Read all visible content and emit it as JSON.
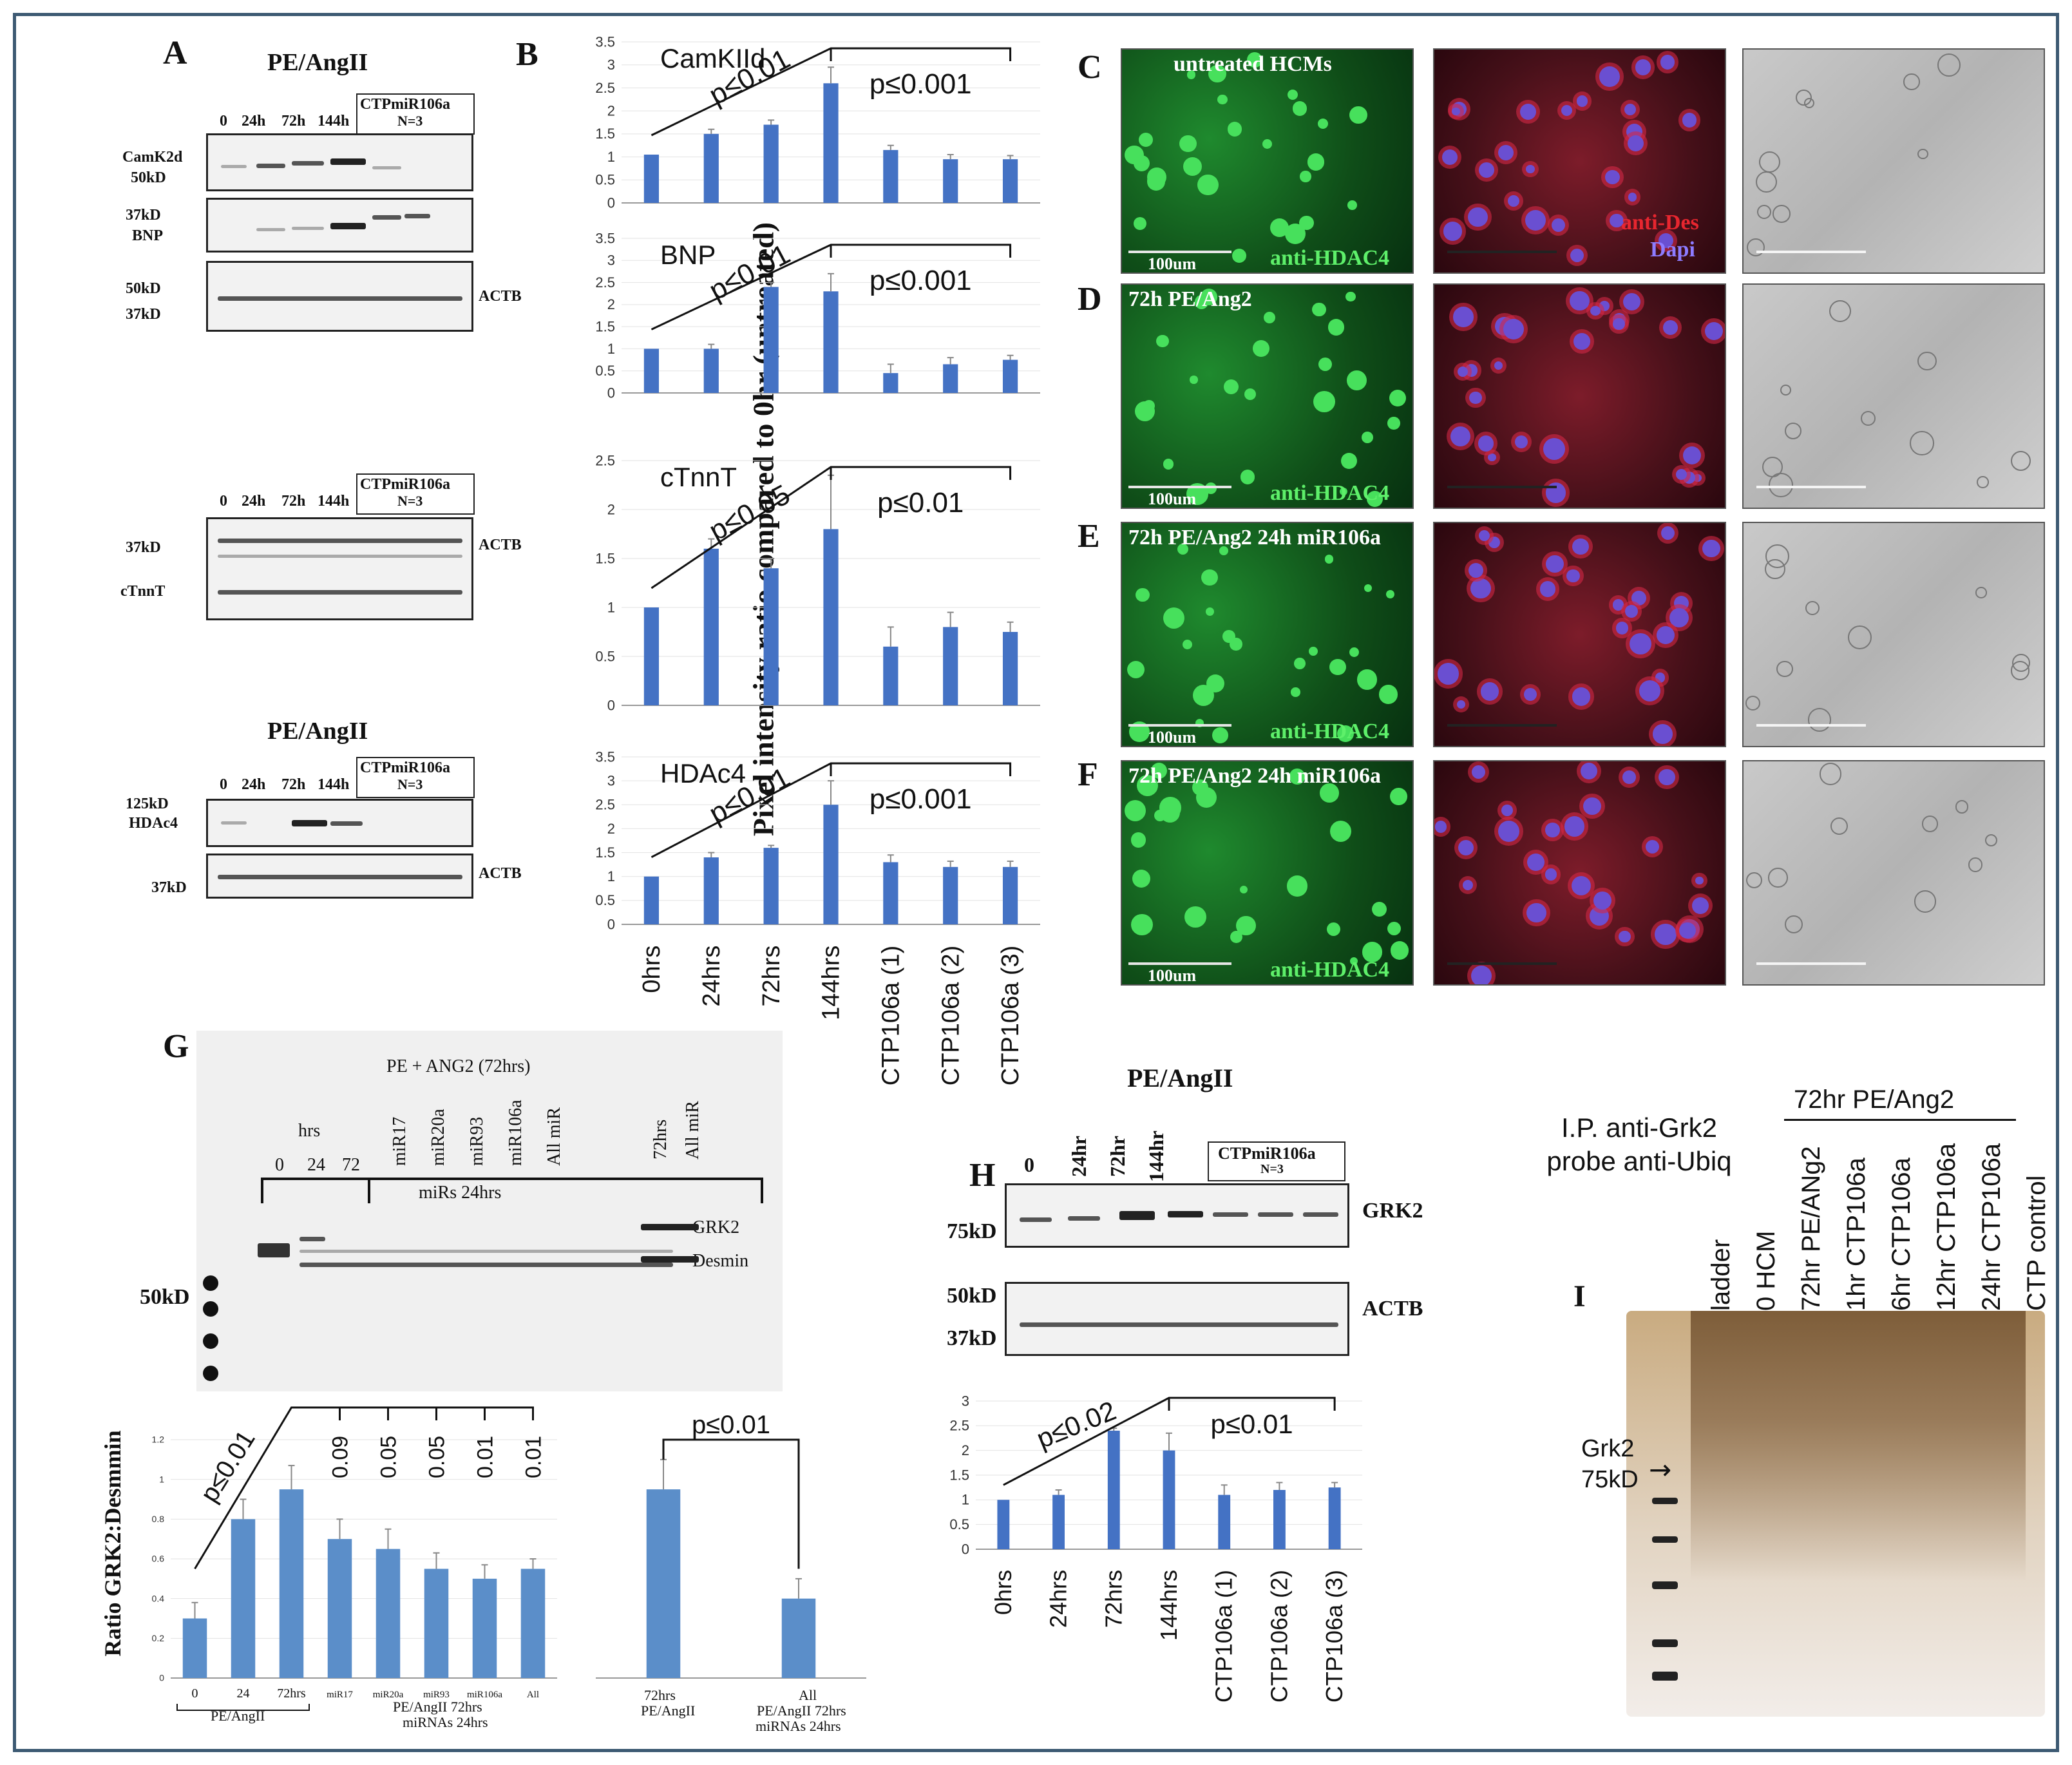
{
  "panels": {
    "A": {
      "letter": "A",
      "blot1": {
        "title": "PE/AngII",
        "lanes": [
          "0",
          "24h",
          "72h",
          "144h"
        ],
        "ctp_label": "CTPmiR106a",
        "ctp_n": "N=3",
        "left_labels": [
          "CamK2d",
          "50kD",
          "37kD",
          "BNP",
          "50kD",
          "37kD"
        ],
        "right_labels": [
          "ACTB"
        ]
      },
      "blot2": {
        "lanes": [
          "0",
          "24h",
          "72h",
          "144h"
        ],
        "ctp_label": "CTPmiR106a",
        "ctp_n": "N=3",
        "left_labels": [
          "37kD",
          "cTnnT"
        ],
        "right_labels": [
          "ACTB"
        ]
      },
      "blot3": {
        "title": "PE/AngII",
        "lanes": [
          "0",
          "24h",
          "72h",
          "144h"
        ],
        "ctp_label": "CTPmiR106a",
        "ctp_n": "N=3",
        "left_labels": [
          "125kD",
          "HDAc4",
          "37kD"
        ],
        "right_labels": [
          "ACTB"
        ]
      }
    },
    "B": {
      "letter": "B",
      "ylabel": "Pixel intensity ratio compared to 0hr (untreated)",
      "categories": [
        "0hrs",
        "24hrs",
        "72hrs",
        "144hrs",
        "CTP106a (1)",
        "CTP106a (2)",
        "CTP106a (3)"
      ]
    },
    "C": {
      "letter": "C",
      "title": "untreated HCMs",
      "stain": "anti-HDAC4",
      "scale": "100um",
      "red_stain": "anti-Des",
      "dapi": "Dapi"
    },
    "D": {
      "letter": "D",
      "title": "72h PE/Ang2",
      "stain": "anti-HDAC4",
      "scale": "100um"
    },
    "E": {
      "letter": "E",
      "title": "72h PE/Ang2 24h miR106a",
      "stain": "anti-HDAC4",
      "scale": "100um"
    },
    "F": {
      "letter": "F",
      "title": "72h PE/Ang2 24h miR106a",
      "stain": "anti-HDAC4",
      "scale": "100um"
    },
    "G": {
      "letter": "G",
      "blot_title": "PE + ANG2 (72hrs)",
      "hrs_label": "hrs",
      "time_lanes": [
        "0",
        "24",
        "72"
      ],
      "mir_lanes": [
        "miR17",
        "miR20a",
        "miR93",
        "miR106a",
        "All miR"
      ],
      "mir_group": "miRs 24hrs",
      "right_lanes": [
        "72hrs",
        "All miR"
      ],
      "markers": [
        "GRK2",
        "Desmin"
      ],
      "ladder": "50kD",
      "ylabel": "Ratio GRK2:Desmmin",
      "left_group_label": "PE/AngII",
      "middle_group_label_1": "PE/AngII 72hrs",
      "middle_group_label_2": "miRNAs 24hrs",
      "right_cat_1a": "72hrs",
      "right_cat_1b": "PE/AngII",
      "right_cat_2a": "All",
      "right_cat_2b": "PE/AngII 72hrs",
      "right_cat_2c": "miRNAs 24hrs"
    },
    "H": {
      "letter": "H",
      "title": "PE/AngII",
      "lanes": [
        "0",
        "24hr",
        "72hr",
        "144hr"
      ],
      "ctp_label": "CTPmiR106a",
      "ctp_n": "N=3",
      "grk2_label": "GRK2",
      "actb_label": "ACTB",
      "markers": [
        "75kD",
        "50kD",
        "37kD"
      ]
    },
    "I": {
      "letter": "I",
      "title_line1": "I.P. anti-Grk2",
      "title_line2": "probe anti-Ubiq",
      "group_label": "72hr PE/Ang2",
      "lanes": [
        "ladder",
        "0 HCM",
        "72hr PE/ANg2",
        "1hr CTP106a",
        "6hr CTP106a",
        "12hr CTP106a",
        "24hr CTP106a",
        "CTP control"
      ],
      "marker_1": "Grk2",
      "marker_2": "75kD"
    }
  },
  "chart_data": [
    {
      "type": "bar",
      "panel": "B",
      "title": "CamKIId",
      "categories": [
        "0hrs",
        "24hrs",
        "72hrs",
        "144hrs",
        "CTP106a (1)",
        "CTP106a (2)",
        "CTP106a (3)"
      ],
      "values": [
        1.05,
        1.5,
        1.7,
        2.6,
        1.15,
        0.95,
        0.95
      ],
      "errors": [
        0.0,
        0.1,
        0.1,
        0.35,
        0.1,
        0.1,
        0.08
      ],
      "ylim": [
        0,
        3.5
      ],
      "yticks": [
        "0",
        "0.5",
        "1",
        "1.5",
        "2",
        "2.5",
        "3",
        "3.5"
      ],
      "annotations": [
        "p≤0.01",
        "p≤0.001"
      ],
      "color": "#4472c4"
    },
    {
      "type": "bar",
      "panel": "B",
      "title": "BNP",
      "categories": [
        "0hrs",
        "24hrs",
        "72hrs",
        "144hrs",
        "CTP106a (1)",
        "CTP106a (2)",
        "CTP106a (3)"
      ],
      "values": [
        1.0,
        1.0,
        2.4,
        2.3,
        0.45,
        0.65,
        0.75
      ],
      "errors": [
        0.0,
        0.1,
        0.1,
        0.4,
        0.2,
        0.15,
        0.1
      ],
      "ylim": [
        0,
        3.5
      ],
      "yticks": [
        "0",
        "0.5",
        "1",
        "1.5",
        "2",
        "2.5",
        "3",
        "3.5"
      ],
      "annotations": [
        "p≤0.01",
        "p≤0.001"
      ],
      "color": "#4472c4"
    },
    {
      "type": "bar",
      "panel": "B",
      "title": "cTnnT",
      "categories": [
        "0hrs",
        "24hrs",
        "72hrs",
        "144hrs",
        "CTP106a (1)",
        "CTP106a (2)",
        "CTP106a (3)"
      ],
      "values": [
        1.0,
        1.6,
        1.4,
        1.8,
        0.6,
        0.8,
        0.75
      ],
      "errors": [
        0.0,
        0.1,
        0.1,
        0.55,
        0.2,
        0.15,
        0.1
      ],
      "ylim": [
        0,
        2.5
      ],
      "yticks": [
        "0",
        "0.5",
        "1",
        "1.5",
        "2",
        "2.5"
      ],
      "annotations": [
        "p≤0.05",
        "p≤0.01"
      ],
      "color": "#4472c4"
    },
    {
      "type": "bar",
      "panel": "B",
      "title": "HDAc4",
      "categories": [
        "0hrs",
        "24hrs",
        "72hrs",
        "144hrs",
        "CTP106a (1)",
        "CTP106a (2)",
        "CTP106a (3)"
      ],
      "values": [
        1.0,
        1.4,
        1.6,
        2.5,
        1.3,
        1.2,
        1.2
      ],
      "errors": [
        0.0,
        0.1,
        0.05,
        0.5,
        0.15,
        0.12,
        0.12
      ],
      "ylim": [
        0,
        3.5
      ],
      "yticks": [
        "0",
        "0.5",
        "1",
        "1.5",
        "2",
        "2.5",
        "3",
        "3.5"
      ],
      "annotations": [
        "p≤0.01",
        "p≤0.001"
      ],
      "color": "#4472c4"
    },
    {
      "type": "bar",
      "panel": "G-left",
      "title": "",
      "ylabel": "Ratio GRK2:Desmmin",
      "categories": [
        "0",
        "24",
        "72hrs",
        "miR17",
        "miR20a",
        "miR93",
        "miR106a",
        "All"
      ],
      "values": [
        0.3,
        0.8,
        0.95,
        0.7,
        0.65,
        0.55,
        0.5,
        0.55
      ],
      "errors": [
        0.08,
        0.1,
        0.12,
        0.1,
        0.1,
        0.08,
        0.07,
        0.05
      ],
      "ylim": [
        0,
        1.2
      ],
      "yticks": [
        "0",
        "0.2",
        "0.4",
        "0.6",
        "0.8",
        "1",
        "1.2"
      ],
      "annotations": [
        "p≤0.01",
        "0.09",
        "0.05",
        "0.05",
        "0.01",
        "0.01"
      ],
      "color": "#5b8ec9"
    },
    {
      "type": "bar",
      "panel": "G-right",
      "title": "",
      "categories": [
        "72hrs PE/AngII",
        "All PE/AngII 72hrs miRNAs 24hrs"
      ],
      "values": [
        0.95,
        0.4
      ],
      "errors": [
        0.15,
        0.1
      ],
      "ylim": [
        0,
        1.2
      ],
      "annotations": [
        "p≤0.01"
      ],
      "color": "#5b8ec9"
    },
    {
      "type": "bar",
      "panel": "H",
      "title": "",
      "categories": [
        "0hrs",
        "24hrs",
        "72hrs",
        "144hrs",
        "CTP106a (1)",
        "CTP106a (2)",
        "CTP106a (3)"
      ],
      "values": [
        1.0,
        1.1,
        2.4,
        2.0,
        1.1,
        1.2,
        1.25
      ],
      "errors": [
        0.0,
        0.1,
        0.05,
        0.35,
        0.2,
        0.15,
        0.1
      ],
      "ylim": [
        0,
        3
      ],
      "yticks": [
        "0",
        "0.5",
        "1",
        "1.5",
        "2",
        "2.5",
        "3"
      ],
      "annotations": [
        "p≤0.02",
        "p≤0.01"
      ],
      "color": "#4472c4"
    }
  ]
}
